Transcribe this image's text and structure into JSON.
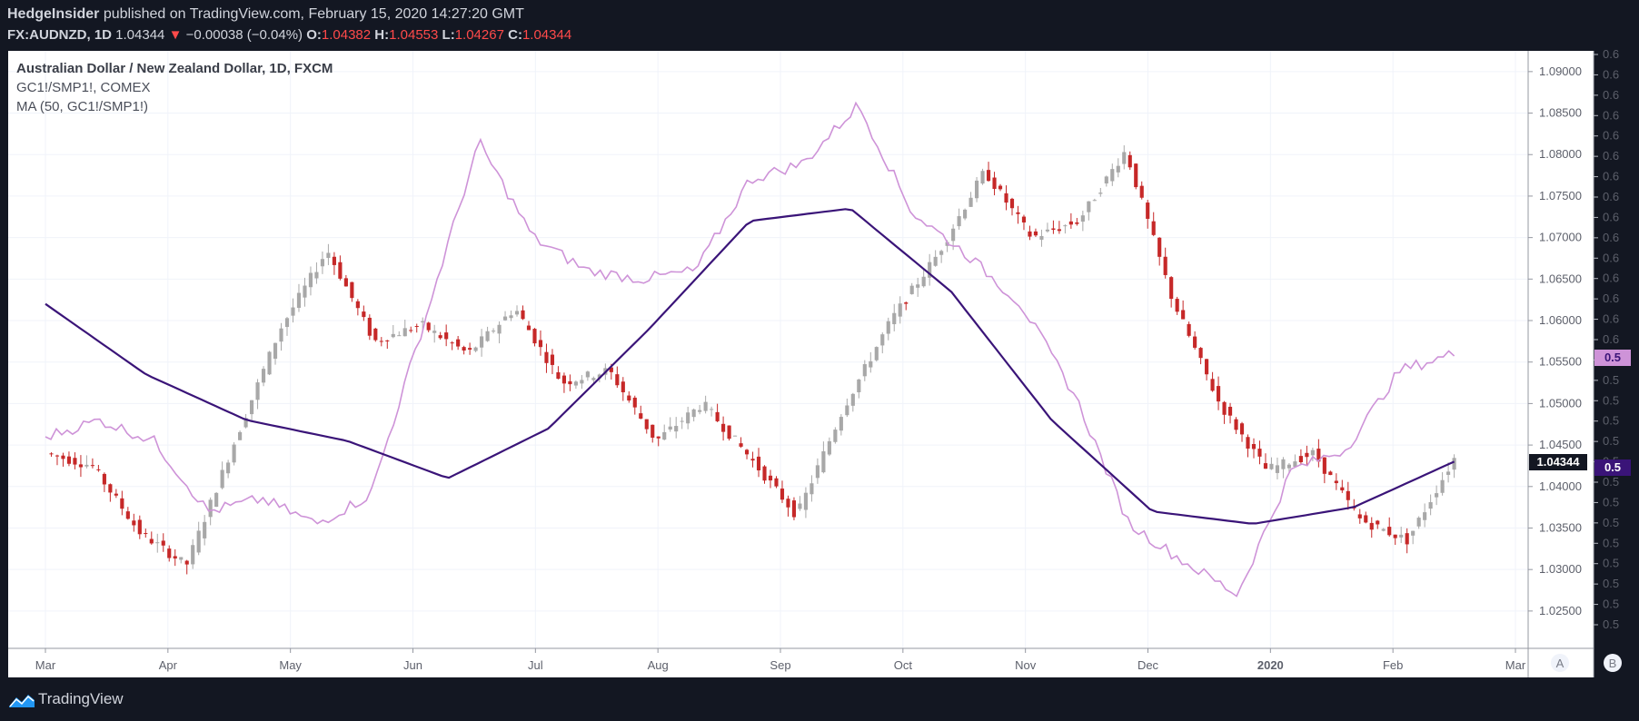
{
  "header": {
    "publisher": "HedgeInsider",
    "published_text": "published on TradingView.com, February 15, 2020 14:27:20 GMT",
    "symbol": "FX:AUDNZD, 1D",
    "last": "1.04344",
    "arrow": "▼",
    "change": "−0.00038 (−0.04%)",
    "o_label": "O:",
    "o": "1.04382",
    "h_label": "H:",
    "h": "1.04553",
    "l_label": "L:",
    "l": "1.04267",
    "c_label": "C:",
    "c": "1.04344"
  },
  "legend": {
    "main": "Australian Dollar / New Zealand Dollar, 1D, FXCM",
    "overlay": "GC1!/SMP1!, COMEX",
    "ma": "MA (50, GC1!/SMP1!)"
  },
  "footer": {
    "brand": "TradingView"
  },
  "scale_buttons": [
    "A",
    "B"
  ],
  "colors": {
    "background": "#ffffff",
    "up_candle": "#a8a8a8",
    "down_candle": "#c62828",
    "overlay": "#ce93d8",
    "ma": "#3a1478"
  },
  "chart_data": {
    "type": "line",
    "title": "Australian Dollar / New Zealand Dollar, 1D, FXCM",
    "x_labels": [
      "Mar",
      "Apr",
      "May",
      "Jun",
      "Jul",
      "Aug",
      "Sep",
      "Oct",
      "Nov",
      "Dec",
      "2020",
      "Feb",
      "Mar"
    ],
    "y_ticks": [
      "1.09000",
      "1.08500",
      "1.08000",
      "1.07500",
      "1.07000",
      "1.06500",
      "1.06000",
      "1.05500",
      "1.05000",
      "1.04500",
      "1.04000",
      "1.03500",
      "1.03000",
      "1.02500"
    ],
    "ylim": [
      1.0205,
      1.0925
    ],
    "overlay_axis_ticks": [
      "0.6",
      "0.6",
      "0.6",
      "0.6",
      "0.6",
      "0.6",
      "0.6",
      "0.6",
      "0.6",
      "0.6",
      "0.6",
      "0.6",
      "0.6",
      "0.6",
      "0.6",
      "0.5",
      "0.5",
      "0.5",
      "0.5",
      "0.5",
      "0.5",
      "0.5",
      "0.5",
      "0.5",
      "0.5",
      "0.5",
      "0.5",
      "0.5",
      "0.5"
    ],
    "last_price_label": "1.04344",
    "overlay_last_label": "0.5",
    "ma_last_label": "0.5",
    "price_series": {
      "name": "FX:AUDNZD",
      "points": [
        {
          "x": "Mar",
          "y": 1.044
        },
        {
          "x": "Mar (mid)",
          "y": 1.0425
        },
        {
          "x": "Mar (late)",
          "y": 1.0345
        },
        {
          "x": "Apr (start)",
          "y": 1.0305
        },
        {
          "x": "Apr",
          "y": 1.045
        },
        {
          "x": "Apr (mid)",
          "y": 1.059
        },
        {
          "x": "Apr (late)",
          "y": 1.0685
        },
        {
          "x": "May",
          "y": 1.0575
        },
        {
          "x": "May (mid)",
          "y": 1.0595
        },
        {
          "x": "May (late)",
          "y": 1.056
        },
        {
          "x": "Jun",
          "y": 1.0615
        },
        {
          "x": "Jun (mid)",
          "y": 1.0525
        },
        {
          "x": "Jun (late)",
          "y": 1.054
        },
        {
          "x": "Jul",
          "y": 1.0455
        },
        {
          "x": "Jul (mid)",
          "y": 1.05
        },
        {
          "x": "Jul (late)",
          "y": 1.0435
        },
        {
          "x": "Aug",
          "y": 1.0365
        },
        {
          "x": "Aug (mid)",
          "y": 1.0495
        },
        {
          "x": "Aug (late)",
          "y": 1.06
        },
        {
          "x": "Sep",
          "y": 1.068
        },
        {
          "x": "Sep (mid)",
          "y": 1.078
        },
        {
          "x": "Oct",
          "y": 1.07
        },
        {
          "x": "Oct (mid)",
          "y": 1.072
        },
        {
          "x": "Nov",
          "y": 1.0805
        },
        {
          "x": "Nov (mid)",
          "y": 1.0625
        },
        {
          "x": "Dec",
          "y": 1.05
        },
        {
          "x": "Dec (mid)",
          "y": 1.042
        },
        {
          "x": "2020",
          "y": 1.044
        },
        {
          "x": "Jan (mid)",
          "y": 1.036
        },
        {
          "x": "Feb",
          "y": 1.0335
        },
        {
          "x": "Feb (mid)",
          "y": 1.0434
        }
      ]
    },
    "overlay_series": {
      "name": "GC1!/SMP1!, COMEX",
      "points": [
        {
          "x": "Mar",
          "y": 1.046
        },
        {
          "x": "Mar (mid)",
          "y": 1.048
        },
        {
          "x": "Apr",
          "y": 1.0455
        },
        {
          "x": "Apr (mid)",
          "y": 1.037
        },
        {
          "x": "May",
          "y": 1.0385
        },
        {
          "x": "May (late)",
          "y": 1.0355
        },
        {
          "x": "Jun",
          "y": 1.039
        },
        {
          "x": "Jun (mid)",
          "y": 1.06
        },
        {
          "x": "Jun (late)",
          "y": 1.0815
        },
        {
          "x": "Jul",
          "y": 1.07
        },
        {
          "x": "Jul (mid)",
          "y": 1.066
        },
        {
          "x": "Jul (late)",
          "y": 1.065
        },
        {
          "x": "Aug",
          "y": 1.066
        },
        {
          "x": "Aug (mid)",
          "y": 1.077
        },
        {
          "x": "Aug (late)",
          "y": 1.079
        },
        {
          "x": "Sep",
          "y": 1.086
        },
        {
          "x": "Sep (mid)",
          "y": 1.073
        },
        {
          "x": "Oct",
          "y": 1.068
        },
        {
          "x": "Oct (mid)",
          "y": 1.062
        },
        {
          "x": "Nov",
          "y": 1.051
        },
        {
          "x": "Nov (mid)",
          "y": 1.0355
        },
        {
          "x": "Dec",
          "y": 1.031
        },
        {
          "x": "Dec (mid)",
          "y": 1.027
        },
        {
          "x": "2020",
          "y": 1.042
        },
        {
          "x": "Jan (mid)",
          "y": 1.0445
        },
        {
          "x": "Feb",
          "y": 1.054
        },
        {
          "x": "Feb (mid)",
          "y": 1.056
        }
      ]
    },
    "ma_series": {
      "name": "MA (50, GC1!/SMP1!)",
      "points": [
        {
          "x": "Mar",
          "y": 1.062
        },
        {
          "x": "Mar (mid)",
          "y": 1.0535
        },
        {
          "x": "Apr",
          "y": 1.048
        },
        {
          "x": "May",
          "y": 1.0455
        },
        {
          "x": "Jun",
          "y": 1.041
        },
        {
          "x": "Jul",
          "y": 1.047
        },
        {
          "x": "Aug",
          "y": 1.059
        },
        {
          "x": "Sep",
          "y": 1.072
        },
        {
          "x": "Oct",
          "y": 1.0735
        },
        {
          "x": "Nov",
          "y": 1.0635
        },
        {
          "x": "Dec",
          "y": 1.048
        },
        {
          "x": "2020",
          "y": 1.037
        },
        {
          "x": "Jan (mid)",
          "y": 1.0355
        },
        {
          "x": "Feb",
          "y": 1.0375
        },
        {
          "x": "Feb (mid)",
          "y": 1.043
        }
      ]
    }
  }
}
